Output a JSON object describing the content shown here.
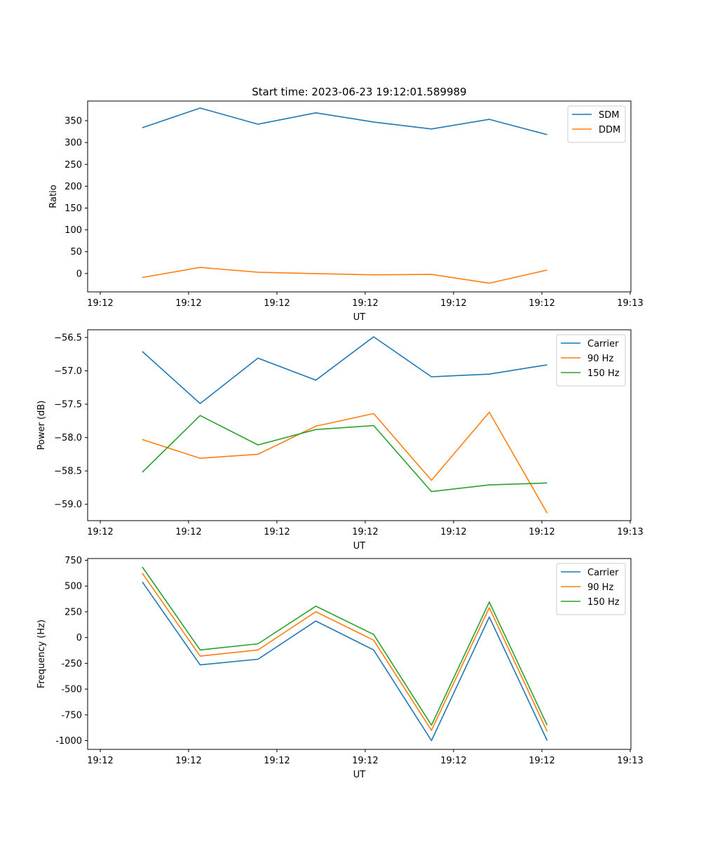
{
  "chart_data": [
    {
      "type": "line",
      "title": "Start time: 2023-06-23 19:12:01.589989",
      "xlabel": "UT",
      "ylabel": "Ratio",
      "x_ticks": [
        "19:12",
        "19:12",
        "19:12",
        "19:12",
        "19:12",
        "19:12",
        "19:13"
      ],
      "y_ticks": [
        350,
        300,
        250,
        200,
        150,
        100,
        50,
        0
      ],
      "ylim": [
        -42,
        395
      ],
      "legend_position": "top-right",
      "grid": false,
      "series": [
        {
          "name": "SDM",
          "color": "#1f77b4",
          "values": [
            334,
            379,
            342,
            368,
            347,
            331,
            353,
            318
          ]
        },
        {
          "name": "DDM",
          "color": "#ff7f0e",
          "values": [
            -9,
            14,
            3,
            0,
            -3,
            -2,
            -22,
            8
          ]
        }
      ]
    },
    {
      "type": "line",
      "title": "",
      "xlabel": "UT",
      "ylabel": "Power (dB)",
      "x_ticks": [
        "19:12",
        "19:12",
        "19:12",
        "19:12",
        "19:12",
        "19:12",
        "19:13"
      ],
      "y_ticks": [
        "−56.5",
        "−57.0",
        "−57.5",
        "−58.0",
        "−58.5",
        "−59.0"
      ],
      "ylim": [
        -59.245,
        -56.385
      ],
      "legend_position": "top-right",
      "grid": false,
      "series": [
        {
          "name": "Carrier",
          "color": "#1f77b4",
          "values": [
            -56.71,
            -57.49,
            -56.81,
            -57.14,
            -56.49,
            -57.09,
            -57.05,
            -56.91
          ]
        },
        {
          "name": "90 Hz",
          "color": "#ff7f0e",
          "values": [
            -58.03,
            -58.31,
            -58.25,
            -57.83,
            -57.64,
            -58.64,
            -57.62,
            -59.13
          ]
        },
        {
          "name": "150 Hz",
          "color": "#2ca02c",
          "values": [
            -58.52,
            -57.67,
            -58.11,
            -57.88,
            -57.82,
            -58.81,
            -58.71,
            -58.68
          ]
        }
      ]
    },
    {
      "type": "line",
      "title": "",
      "xlabel": "UT",
      "ylabel": "Frequency (Hz)",
      "x_ticks": [
        "19:12",
        "19:12",
        "19:12",
        "19:12",
        "19:12",
        "19:12",
        "19:13"
      ],
      "y_ticks": [
        750,
        500,
        250,
        0,
        -250,
        -500,
        -750,
        -1000
      ],
      "ylim": [
        -1085,
        767
      ],
      "legend_position": "top-right",
      "grid": false,
      "series": [
        {
          "name": "Carrier",
          "color": "#1f77b4",
          "values": [
            540,
            -265,
            -210,
            160,
            -120,
            -1000,
            200,
            -1000
          ]
        },
        {
          "name": "90 Hz",
          "color": "#ff7f0e",
          "values": [
            625,
            -180,
            -120,
            250,
            -25,
            -900,
            290,
            -910
          ]
        },
        {
          "name": "150 Hz",
          "color": "#2ca02c",
          "values": [
            685,
            -120,
            -60,
            305,
            30,
            -850,
            345,
            -850
          ]
        }
      ]
    }
  ]
}
